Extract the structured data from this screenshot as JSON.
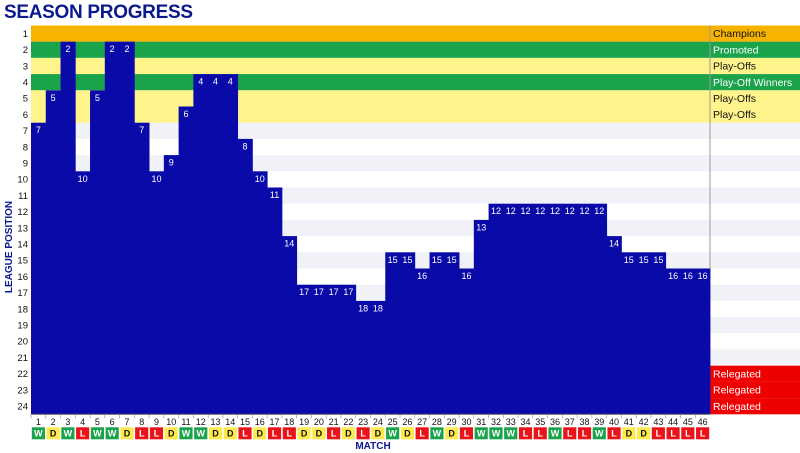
{
  "chart_data": {
    "type": "bar",
    "title": "SEASON PROGRESS",
    "xlabel": "MATCH",
    "ylabel": "LEAGUE POSITION",
    "ylim": [
      1,
      24
    ],
    "y_inverted": true,
    "categories": [
      "1",
      "2",
      "3",
      "4",
      "5",
      "6",
      "7",
      "8",
      "9",
      "10",
      "11",
      "12",
      "13",
      "14",
      "15",
      "16",
      "17",
      "18",
      "19",
      "20",
      "21",
      "22",
      "23",
      "24",
      "25",
      "26",
      "27",
      "28",
      "29",
      "30",
      "31",
      "32",
      "33",
      "34",
      "35",
      "36",
      "37",
      "38",
      "39",
      "40",
      "41",
      "42",
      "43",
      "44",
      "45",
      "46"
    ],
    "values": [
      7,
      5,
      2,
      10,
      5,
      2,
      2,
      7,
      10,
      9,
      6,
      4,
      4,
      4,
      8,
      10,
      11,
      14,
      17,
      17,
      17,
      17,
      18,
      18,
      15,
      15,
      16,
      15,
      15,
      16,
      13,
      12,
      12,
      12,
      12,
      12,
      12,
      12,
      12,
      14,
      15,
      15,
      15,
      16,
      16,
      16
    ],
    "results": [
      "W",
      "D",
      "W",
      "L",
      "W",
      "W",
      "D",
      "L",
      "L",
      "D",
      "W",
      "W",
      "D",
      "D",
      "L",
      "D",
      "L",
      "L",
      "D",
      "D",
      "L",
      "D",
      "L",
      "D",
      "W",
      "D",
      "L",
      "W",
      "D",
      "L",
      "W",
      "W",
      "W",
      "L",
      "L",
      "W",
      "L",
      "L",
      "W",
      "L",
      "D",
      "D",
      "L",
      "L",
      "L",
      "L"
    ],
    "result_colors": {
      "W": "#1aa34a",
      "D": "#ffea4d",
      "L": "#e8141a"
    },
    "bar_color": "#0a0aa8",
    "zones": [
      {
        "label": "Champions",
        "color": "#f6b400",
        "from": 1,
        "to": 1
      },
      {
        "label": "Promoted",
        "color": "#1aa34a",
        "from": 2,
        "to": 2
      },
      {
        "label": "Play-Offs",
        "color": "#fff38c",
        "from": 3,
        "to": 3
      },
      {
        "label": "Play-Off Winners",
        "color": "#1aa34a",
        "from": 4,
        "to": 4
      },
      {
        "label": "Play-Offs",
        "color": "#fff38c",
        "from": 5,
        "to": 6
      },
      {
        "label": "Relegated",
        "color": "#ef0000",
        "from": 22,
        "to": 24
      }
    ],
    "zone_row_labels": [
      {
        "label": "Play-Offs",
        "position": 5
      },
      {
        "label": "Play-Offs",
        "position": 6
      },
      {
        "label": "Relegated",
        "position": 22
      },
      {
        "label": "Relegated",
        "position": 23
      },
      {
        "label": "Relegated",
        "position": 24
      }
    ],
    "band_colors": {
      "odd": "#f1f2f7",
      "even": "#ffffff"
    }
  }
}
